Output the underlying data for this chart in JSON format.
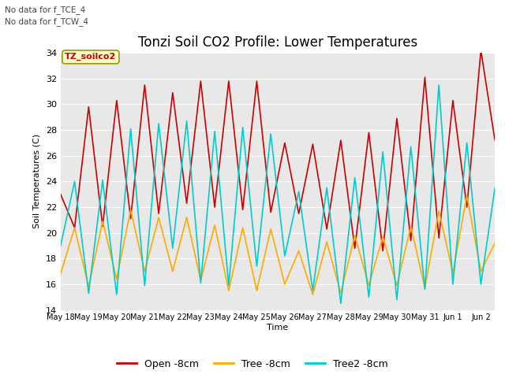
{
  "title": "Tonzi Soil CO2 Profile: Lower Temperatures",
  "ylabel": "Soil Temperatures (C)",
  "xlabel": "Time",
  "annotations": [
    "No data for f_TCE_4",
    "No data for f_TCW_4"
  ],
  "box_label": "TZ_soilco2",
  "ylim": [
    14,
    34
  ],
  "yticks": [
    14,
    16,
    18,
    20,
    22,
    24,
    26,
    28,
    30,
    32,
    34
  ],
  "legend_labels": [
    "Open -8cm",
    "Tree -8cm",
    "Tree2 -8cm"
  ],
  "legend_colors": [
    "#cc0000",
    "#ffaa00",
    "#00cccc"
  ],
  "xtick_labels": [
    "May 18",
    "May 19",
    "May 20",
    "May 21",
    "May 22",
    "May 23",
    "May 24",
    "May 25",
    "May 26",
    "May 27",
    "May 28",
    "May 29",
    "May 30",
    "May 31",
    "Jun 1",
    "Jun 2"
  ],
  "bg_color": "#e8e8e8",
  "title_fontsize": 12,
  "background_color": "#ffffff",
  "open_data": [
    23.0,
    20.4,
    29.8,
    20.5,
    30.3,
    21.1,
    31.5,
    21.5,
    30.9,
    22.3,
    31.8,
    22.0,
    31.8,
    21.8,
    31.8,
    21.6,
    27.0,
    21.5,
    26.9,
    20.3,
    27.2,
    18.8,
    27.8,
    18.6,
    28.9,
    19.4,
    32.1,
    19.6,
    30.3,
    22.0,
    34.2,
    27.2
  ],
  "tree_data": [
    16.8,
    20.4,
    15.8,
    20.9,
    16.4,
    21.8,
    17.0,
    21.2,
    17.0,
    21.2,
    16.3,
    20.6,
    15.5,
    20.4,
    15.5,
    20.3,
    16.0,
    18.6,
    15.2,
    19.3,
    15.3,
    19.8,
    15.9,
    19.7,
    15.9,
    20.5,
    15.7,
    21.7,
    16.9,
    22.9,
    17.0,
    19.2
  ],
  "tree2_data": [
    19.0,
    24.0,
    15.3,
    24.1,
    15.2,
    28.1,
    15.9,
    28.5,
    18.8,
    28.7,
    16.1,
    27.9,
    15.9,
    28.2,
    17.4,
    27.7,
    18.2,
    23.2,
    15.5,
    23.5,
    14.5,
    24.3,
    15.0,
    26.3,
    14.8,
    26.7,
    15.6,
    31.5,
    16.0,
    27.0,
    16.0,
    23.5
  ]
}
